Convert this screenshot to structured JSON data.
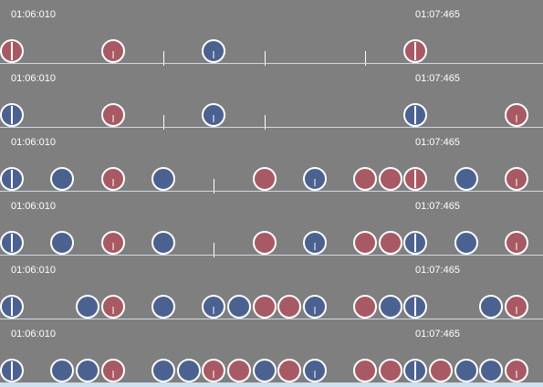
{
  "colors": {
    "background": "#7f7f7f",
    "don": "#a85a64",
    "ka": "#4b6291",
    "outline": "#ffffff",
    "lane_line": "#cfd9e3"
  },
  "lanes": [
    {
      "time_left": "01:06:010",
      "time_right": "01:07:465",
      "ticks": [
        3,
        5,
        7
      ],
      "notes": [
        {
          "slot": 0,
          "type": "don",
          "stem": "long"
        },
        {
          "slot": 2,
          "type": "don",
          "stem": "short"
        },
        {
          "slot": 4,
          "type": "ka",
          "stem": "short"
        },
        {
          "slot": 8,
          "type": "don",
          "stem": "long"
        }
      ]
    },
    {
      "time_left": "01:06:010",
      "time_right": "01:07:465",
      "ticks": [
        3,
        5
      ],
      "notes": [
        {
          "slot": 0,
          "type": "ka",
          "stem": "long"
        },
        {
          "slot": 2,
          "type": "don",
          "stem": "short"
        },
        {
          "slot": 4,
          "type": "ka",
          "stem": "short"
        },
        {
          "slot": 8,
          "type": "ka",
          "stem": "long"
        },
        {
          "slot": 10,
          "type": "don",
          "stem": "short"
        }
      ]
    },
    {
      "time_left": "01:06:010",
      "time_right": "01:07:465",
      "ticks": [
        4
      ],
      "notes": [
        {
          "slot": 0,
          "type": "ka",
          "stem": "long"
        },
        {
          "slot": 1,
          "type": "ka",
          "stem": "none"
        },
        {
          "slot": 2,
          "type": "don",
          "stem": "short"
        },
        {
          "slot": 3,
          "type": "ka",
          "stem": "none"
        },
        {
          "slot": 5,
          "type": "don",
          "stem": "none"
        },
        {
          "slot": 6,
          "type": "ka",
          "stem": "short"
        },
        {
          "slot": 7,
          "type": "don",
          "stem": "none"
        },
        {
          "slot": 7.5,
          "type": "don",
          "stem": "none"
        },
        {
          "slot": 8,
          "type": "don",
          "stem": "long"
        },
        {
          "slot": 9,
          "type": "ka",
          "stem": "none"
        },
        {
          "slot": 10,
          "type": "don",
          "stem": "short"
        }
      ]
    },
    {
      "time_left": "01:06:010",
      "time_right": "01:07:465",
      "ticks": [
        4
      ],
      "notes": [
        {
          "slot": 0,
          "type": "ka",
          "stem": "long"
        },
        {
          "slot": 1,
          "type": "ka",
          "stem": "none"
        },
        {
          "slot": 2,
          "type": "don",
          "stem": "short"
        },
        {
          "slot": 3,
          "type": "ka",
          "stem": "none"
        },
        {
          "slot": 5,
          "type": "don",
          "stem": "none"
        },
        {
          "slot": 6,
          "type": "ka",
          "stem": "short"
        },
        {
          "slot": 7,
          "type": "don",
          "stem": "none"
        },
        {
          "slot": 7.5,
          "type": "don",
          "stem": "none"
        },
        {
          "slot": 8,
          "type": "ka",
          "stem": "long"
        },
        {
          "slot": 9,
          "type": "ka",
          "stem": "none"
        },
        {
          "slot": 10,
          "type": "don",
          "stem": "short"
        }
      ]
    },
    {
      "time_left": "01:06:010",
      "time_right": "01:07:465",
      "ticks": [],
      "notes": [
        {
          "slot": 0,
          "type": "ka",
          "stem": "long"
        },
        {
          "slot": 1.5,
          "type": "ka",
          "stem": "none"
        },
        {
          "slot": 2,
          "type": "don",
          "stem": "short"
        },
        {
          "slot": 3,
          "type": "ka",
          "stem": "none"
        },
        {
          "slot": 4,
          "type": "ka",
          "stem": "short"
        },
        {
          "slot": 4.5,
          "type": "ka",
          "stem": "none"
        },
        {
          "slot": 5,
          "type": "don",
          "stem": "none"
        },
        {
          "slot": 5.5,
          "type": "don",
          "stem": "none"
        },
        {
          "slot": 6,
          "type": "ka",
          "stem": "short"
        },
        {
          "slot": 7,
          "type": "don",
          "stem": "none"
        },
        {
          "slot": 7.5,
          "type": "ka",
          "stem": "none"
        },
        {
          "slot": 8,
          "type": "ka",
          "stem": "long"
        },
        {
          "slot": 9.5,
          "type": "ka",
          "stem": "none"
        },
        {
          "slot": 10,
          "type": "don",
          "stem": "short"
        }
      ]
    },
    {
      "time_left": "01:06:010",
      "time_right": "01:07:465",
      "ticks": [],
      "notes": [
        {
          "slot": 0,
          "type": "ka",
          "stem": "long"
        },
        {
          "slot": 1,
          "type": "ka",
          "stem": "none"
        },
        {
          "slot": 1.5,
          "type": "ka",
          "stem": "none"
        },
        {
          "slot": 2,
          "type": "don",
          "stem": "short"
        },
        {
          "slot": 3,
          "type": "ka",
          "stem": "none"
        },
        {
          "slot": 3.5,
          "type": "ka",
          "stem": "none"
        },
        {
          "slot": 4,
          "type": "don",
          "stem": "short"
        },
        {
          "slot": 4.5,
          "type": "don",
          "stem": "none"
        },
        {
          "slot": 5,
          "type": "ka",
          "stem": "none"
        },
        {
          "slot": 5.5,
          "type": "don",
          "stem": "none"
        },
        {
          "slot": 6,
          "type": "ka",
          "stem": "short"
        },
        {
          "slot": 7,
          "type": "don",
          "stem": "none"
        },
        {
          "slot": 7.5,
          "type": "don",
          "stem": "none"
        },
        {
          "slot": 8,
          "type": "ka",
          "stem": "long"
        },
        {
          "slot": 8.5,
          "type": "don",
          "stem": "none"
        },
        {
          "slot": 9,
          "type": "ka",
          "stem": "none"
        },
        {
          "slot": 9.5,
          "type": "ka",
          "stem": "none"
        },
        {
          "slot": 10,
          "type": "don",
          "stem": "short"
        }
      ]
    }
  ]
}
